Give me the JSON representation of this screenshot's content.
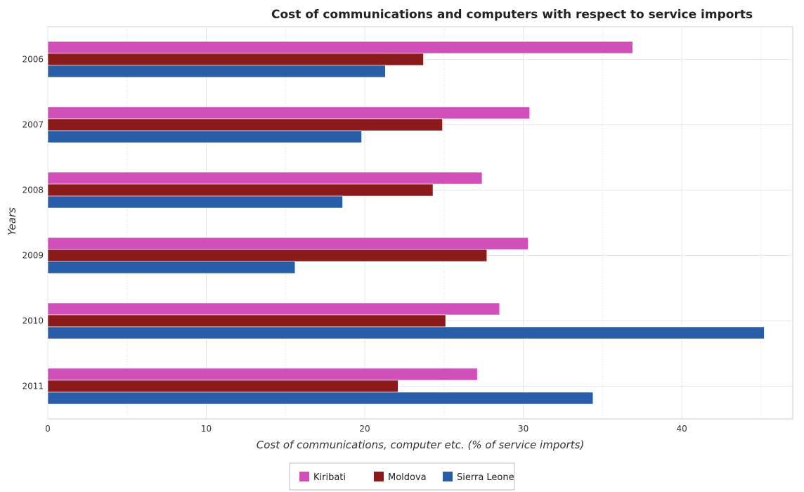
{
  "chart_data": {
    "type": "bar",
    "orientation": "horizontal",
    "title": "Cost of communications and computers with respect to service imports",
    "xlabel": "Cost of communications, computer etc. (% of service imports)",
    "ylabel": "Years",
    "categories": [
      "2006",
      "2007",
      "2008",
      "2009",
      "2010",
      "2011"
    ],
    "xlim": [
      0,
      47
    ],
    "xticks": [
      0,
      10,
      20,
      30,
      40
    ],
    "grid": true,
    "legend_position": "bottom-center",
    "series": [
      {
        "name": "Kiribati",
        "color": "#d14fb8",
        "values": [
          36.9,
          30.4,
          27.4,
          30.3,
          28.5,
          27.1
        ]
      },
      {
        "name": "Moldova",
        "color": "#8b1a1a",
        "values": [
          23.7,
          24.9,
          24.3,
          27.7,
          25.1,
          22.1
        ]
      },
      {
        "name": "Sierra Leone",
        "color": "#2a5da8",
        "values": [
          21.3,
          19.8,
          18.6,
          15.6,
          45.2,
          34.4
        ]
      }
    ]
  }
}
